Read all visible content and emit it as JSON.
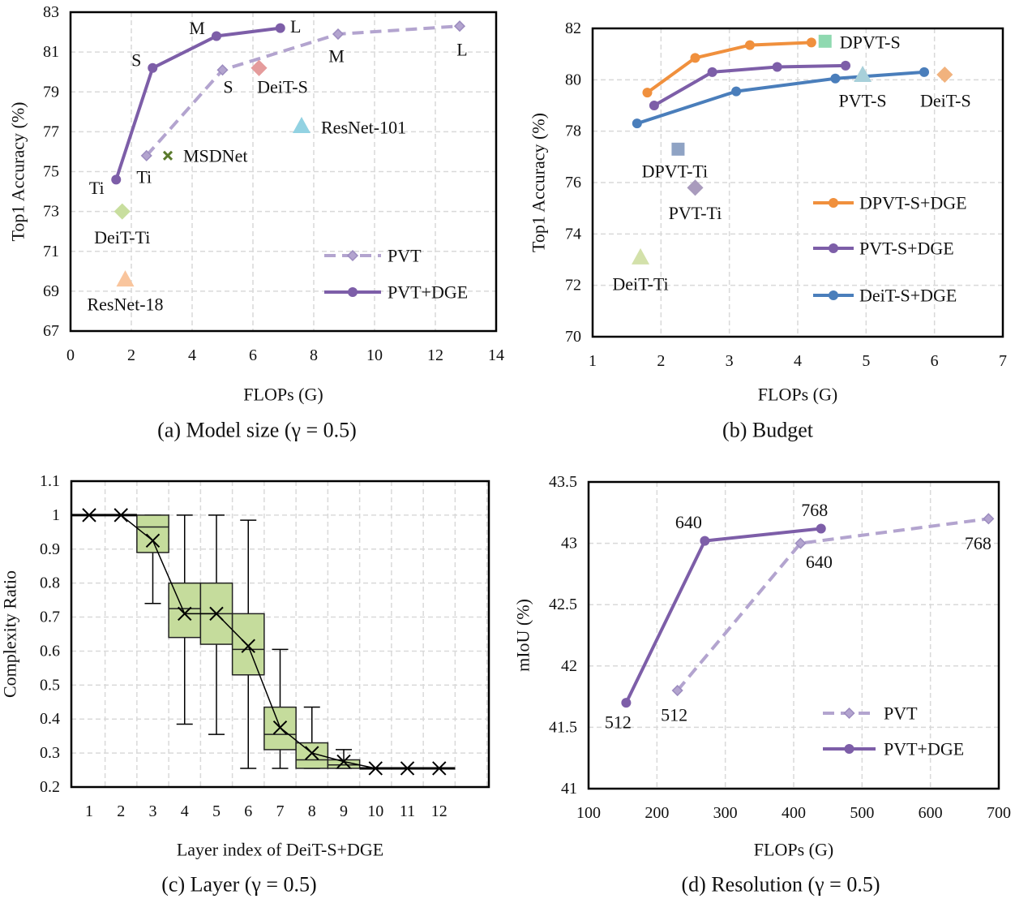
{
  "chart_data": [
    {
      "type": "line",
      "caption": "(a) Model size (γ = 0.5)",
      "xlabel": "FLOPs (G)",
      "ylabel": "Top1 Accuracy (%)",
      "xlim": [
        0,
        14
      ],
      "ylim": [
        67,
        83
      ],
      "xticks": [
        0,
        2,
        4,
        6,
        8,
        10,
        12,
        14
      ],
      "yticks": [
        67,
        69,
        71,
        73,
        75,
        77,
        79,
        81,
        83
      ],
      "grid": true,
      "legend": "bottom-right",
      "series": [
        {
          "name": "PVT",
          "style": "dashed",
          "marker": "diamond",
          "color": "#b3a4cf",
          "x": [
            2.5,
            5.0,
            8.8,
            12.8
          ],
          "y": [
            75.8,
            80.1,
            81.9,
            82.3
          ],
          "labels": [
            "Ti",
            "S",
            "M",
            "L"
          ]
        },
        {
          "name": "PVT+DGE",
          "style": "solid",
          "marker": "circle",
          "color": "#7d5ea8",
          "x": [
            1.5,
            2.7,
            4.8,
            6.9
          ],
          "y": [
            74.6,
            80.2,
            81.8,
            82.2
          ],
          "labels": [
            "Ti",
            "S",
            "M",
            "L"
          ]
        }
      ],
      "points": [
        {
          "label": "DeiT-S",
          "x": 6.2,
          "y": 80.2,
          "marker": "diamond",
          "color": "#e59c9c"
        },
        {
          "label": "ResNet-101",
          "x": 7.6,
          "y": 77.3,
          "marker": "triangle",
          "color": "#92d2e2"
        },
        {
          "label": "MSDNet",
          "x": 3.2,
          "y": 75.8,
          "marker": "x",
          "color": "#5a7a2c"
        },
        {
          "label": "DeiT-Ti",
          "x": 1.7,
          "y": 73.0,
          "marker": "diamond",
          "color": "#c8de9e"
        },
        {
          "label": "ResNet-18",
          "x": 1.8,
          "y": 69.6,
          "marker": "triangle",
          "color": "#f9c59d"
        }
      ]
    },
    {
      "type": "line",
      "caption": "(b) Budget",
      "xlabel": "FLOPs (G)",
      "ylabel": "Top1 Accuracy (%)",
      "xlim": [
        1,
        7
      ],
      "ylim": [
        70,
        82
      ],
      "xticks": [
        1,
        2,
        3,
        4,
        5,
        6,
        7
      ],
      "yticks": [
        70,
        72,
        74,
        76,
        78,
        80,
        82
      ],
      "grid": true,
      "legend": "right",
      "series": [
        {
          "name": "DPVT-S+DGE",
          "style": "solid",
          "marker": "circle",
          "color": "#f0903d",
          "x": [
            1.8,
            2.5,
            3.3,
            4.2
          ],
          "y": [
            79.5,
            80.85,
            81.35,
            81.45
          ]
        },
        {
          "name": "PVT-S+DGE",
          "style": "solid",
          "marker": "circle",
          "color": "#7d5ea8",
          "x": [
            1.9,
            2.75,
            3.7,
            4.7
          ],
          "y": [
            79.0,
            80.3,
            80.5,
            80.55
          ]
        },
        {
          "name": "DeiT-S+DGE",
          "style": "solid",
          "marker": "circle",
          "color": "#4a7ebb",
          "x": [
            1.65,
            3.1,
            4.55,
            5.85
          ],
          "y": [
            78.3,
            79.55,
            80.05,
            80.3
          ]
        }
      ],
      "points": [
        {
          "label": "DPVT-S",
          "x": 4.4,
          "y": 81.5,
          "marker": "square",
          "color": "#8fd9b0"
        },
        {
          "label": "PVT-S",
          "x": 4.95,
          "y": 80.2,
          "marker": "triangle",
          "color": "#a8d0da"
        },
        {
          "label": "DeiT-S",
          "x": 6.15,
          "y": 80.2,
          "marker": "diamond",
          "color": "#f1b27d"
        },
        {
          "label": "DPVT-Ti",
          "x": 2.25,
          "y": 77.3,
          "marker": "square",
          "color": "#8fa3c4"
        },
        {
          "label": "PVT-Ti",
          "x": 2.5,
          "y": 75.8,
          "marker": "diamond",
          "color": "#a99bbd"
        },
        {
          "label": "DeiT-Ti",
          "x": 1.7,
          "y": 73.1,
          "marker": "triangle",
          "color": "#d3e1aa"
        }
      ]
    },
    {
      "type": "box",
      "caption": "(c) Layer (γ = 0.5)",
      "xlabel": "Layer index of DeiT-S+DGE",
      "ylabel": "Complexity Ratio",
      "categories": [
        "1",
        "2",
        "3",
        "4",
        "5",
        "6",
        "7",
        "8",
        "9",
        "10",
        "11",
        "12"
      ],
      "ylim": [
        0.2,
        1.1
      ],
      "yticks": [
        "0.2",
        "0.3",
        "0.4",
        "0.5",
        "0.6",
        "0.7",
        "0.8",
        "0.9",
        "1",
        "1.1"
      ],
      "grid": true,
      "box_color": "#c5dc9c",
      "mean": [
        1.0,
        1.0,
        0.925,
        0.71,
        0.71,
        0.615,
        0.375,
        0.3,
        0.275,
        0.255,
        0.255,
        0.255
      ],
      "boxes": [
        null,
        null,
        {
          "min": 0.74,
          "q1": 0.89,
          "median": 0.965,
          "q3": 1.0,
          "max": 1.0
        },
        {
          "min": 0.385,
          "q1": 0.64,
          "median": 0.725,
          "q3": 0.8,
          "max": 1.0
        },
        {
          "min": 0.355,
          "q1": 0.62,
          "median": 0.71,
          "q3": 0.8,
          "max": 1.0
        },
        {
          "min": 0.255,
          "q1": 0.53,
          "median": 0.605,
          "q3": 0.71,
          "max": 0.985
        },
        {
          "min": 0.255,
          "q1": 0.31,
          "median": 0.355,
          "q3": 0.435,
          "max": 0.605
        },
        {
          "min": 0.255,
          "q1": 0.255,
          "median": 0.28,
          "q3": 0.33,
          "max": 0.435
        },
        {
          "min": 0.255,
          "q1": 0.255,
          "median": 0.265,
          "q3": 0.28,
          "max": 0.31
        },
        null,
        null,
        null
      ]
    },
    {
      "type": "line",
      "caption": "(d) Resolution (γ = 0.5)",
      "xlabel": "FLOPs (G)",
      "ylabel": "mIoU (%)",
      "xlim": [
        100,
        700
      ],
      "ylim": [
        41,
        43.5
      ],
      "xticks": [
        100,
        200,
        300,
        400,
        500,
        600,
        700
      ],
      "yticks": [
        "41",
        "41.5",
        "42",
        "42.5",
        "43",
        "43.5"
      ],
      "grid": true,
      "legend": "bottom-right",
      "series": [
        {
          "name": "PVT",
          "style": "dashed",
          "marker": "diamond",
          "color": "#b3a4cf",
          "x": [
            230,
            410,
            685
          ],
          "y": [
            41.8,
            43.0,
            43.2
          ],
          "labels": [
            "512",
            "640",
            "768"
          ]
        },
        {
          "name": "PVT+DGE",
          "style": "solid",
          "marker": "circle",
          "color": "#7d5ea8",
          "x": [
            155,
            270,
            440
          ],
          "y": [
            41.7,
            43.02,
            43.12
          ],
          "labels": [
            "512",
            "640",
            "768"
          ]
        }
      ]
    }
  ]
}
